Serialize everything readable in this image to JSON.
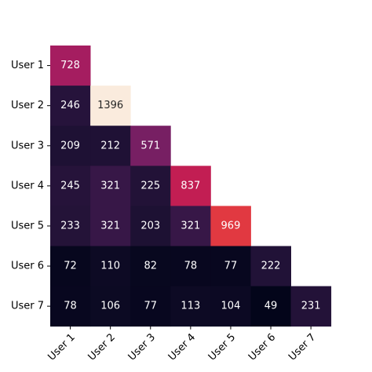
{
  "chart_data": {
    "type": "heatmap",
    "title": "",
    "xlabel": "",
    "ylabel": "",
    "shape": "lower-triangle",
    "colorbar": false,
    "x_labels": [
      "User 1",
      "User 2",
      "User 3",
      "User 4",
      "User 5",
      "User 6",
      "User 7"
    ],
    "y_labels": [
      "User 1",
      "User 2",
      "User 3",
      "User 4",
      "User 5",
      "User 6",
      "User 7"
    ],
    "values": [
      [
        728
      ],
      [
        246,
        1396
      ],
      [
        209,
        212,
        571
      ],
      [
        245,
        321,
        225,
        837
      ],
      [
        233,
        321,
        203,
        321,
        969
      ],
      [
        72,
        110,
        82,
        78,
        77,
        222
      ],
      [
        78,
        106,
        77,
        113,
        104,
        49,
        231
      ]
    ],
    "value_range": [
      49,
      1396
    ],
    "colormap": "rocket",
    "x_tick_rotation_deg": 45
  }
}
